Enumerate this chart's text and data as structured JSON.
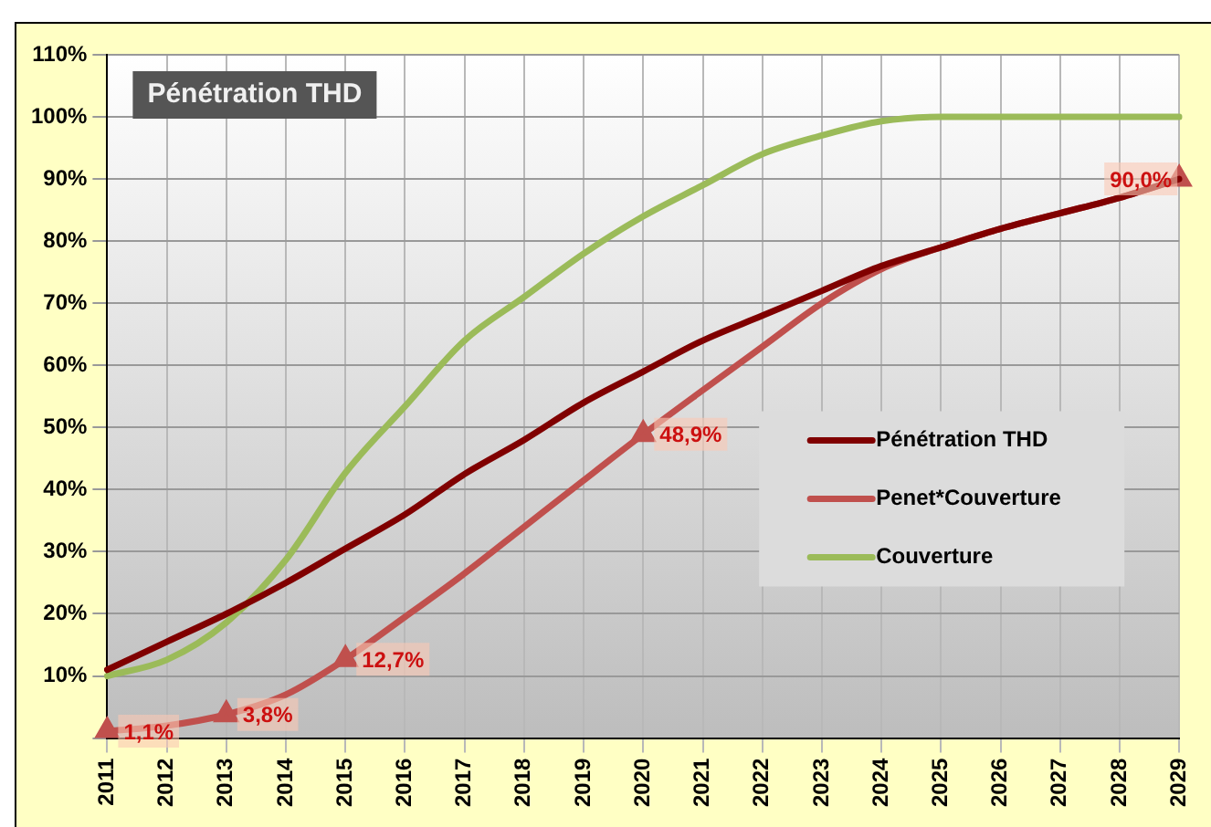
{
  "chart_data": {
    "type": "line",
    "title": "Pénétration THD",
    "categories": [
      "2011",
      "2012",
      "2013",
      "2014",
      "2015",
      "2016",
      "2017",
      "2018",
      "2019",
      "2020",
      "2021",
      "2022",
      "2023",
      "2024",
      "2025",
      "2026",
      "2027",
      "2028",
      "2029"
    ],
    "series": [
      {
        "name": "Pénétration THD",
        "color": "#800000",
        "values": [
          11,
          15.5,
          20,
          25,
          30.5,
          36,
          42.5,
          48,
          54,
          59,
          64,
          68,
          72,
          76,
          79,
          82,
          84.5,
          87,
          90
        ]
      },
      {
        "name": "Penet*Couverture",
        "color": "#c0504d",
        "values": [
          1.1,
          2,
          3.8,
          7,
          12.7,
          19.5,
          26.5,
          34,
          41.5,
          48.9,
          56,
          63,
          70,
          75.5,
          79,
          82,
          84.5,
          87,
          90.0
        ],
        "value_labels": [
          "1,1%",
          null,
          "3,8%",
          null,
          "12,7%",
          null,
          null,
          null,
          null,
          "48,9%",
          null,
          null,
          null,
          null,
          null,
          null,
          null,
          null,
          "90,0%"
        ]
      },
      {
        "name": "Couverture",
        "color": "#9bbb59",
        "values": [
          10,
          12.6,
          18.6,
          28.7,
          42.7,
          53.4,
          64,
          71,
          78,
          84,
          89,
          94,
          97,
          99.3,
          100,
          100,
          100,
          100,
          100
        ]
      }
    ],
    "ylim": [
      0,
      110
    ],
    "yticks": [
      {
        "value": 0,
        "label": null
      },
      {
        "value": 10,
        "label": "10%"
      },
      {
        "value": 20,
        "label": "20%"
      },
      {
        "value": 30,
        "label": "30%"
      },
      {
        "value": 40,
        "label": "40%"
      },
      {
        "value": 50,
        "label": "50%"
      },
      {
        "value": 60,
        "label": "60%"
      },
      {
        "value": 70,
        "label": "70%"
      },
      {
        "value": 80,
        "label": "80%"
      },
      {
        "value": 90,
        "label": "90%"
      },
      {
        "value": 100,
        "label": "100%"
      },
      {
        "value": 110,
        "label": "110%"
      }
    ],
    "grid": true,
    "legend": "right",
    "line_style": "solid"
  }
}
